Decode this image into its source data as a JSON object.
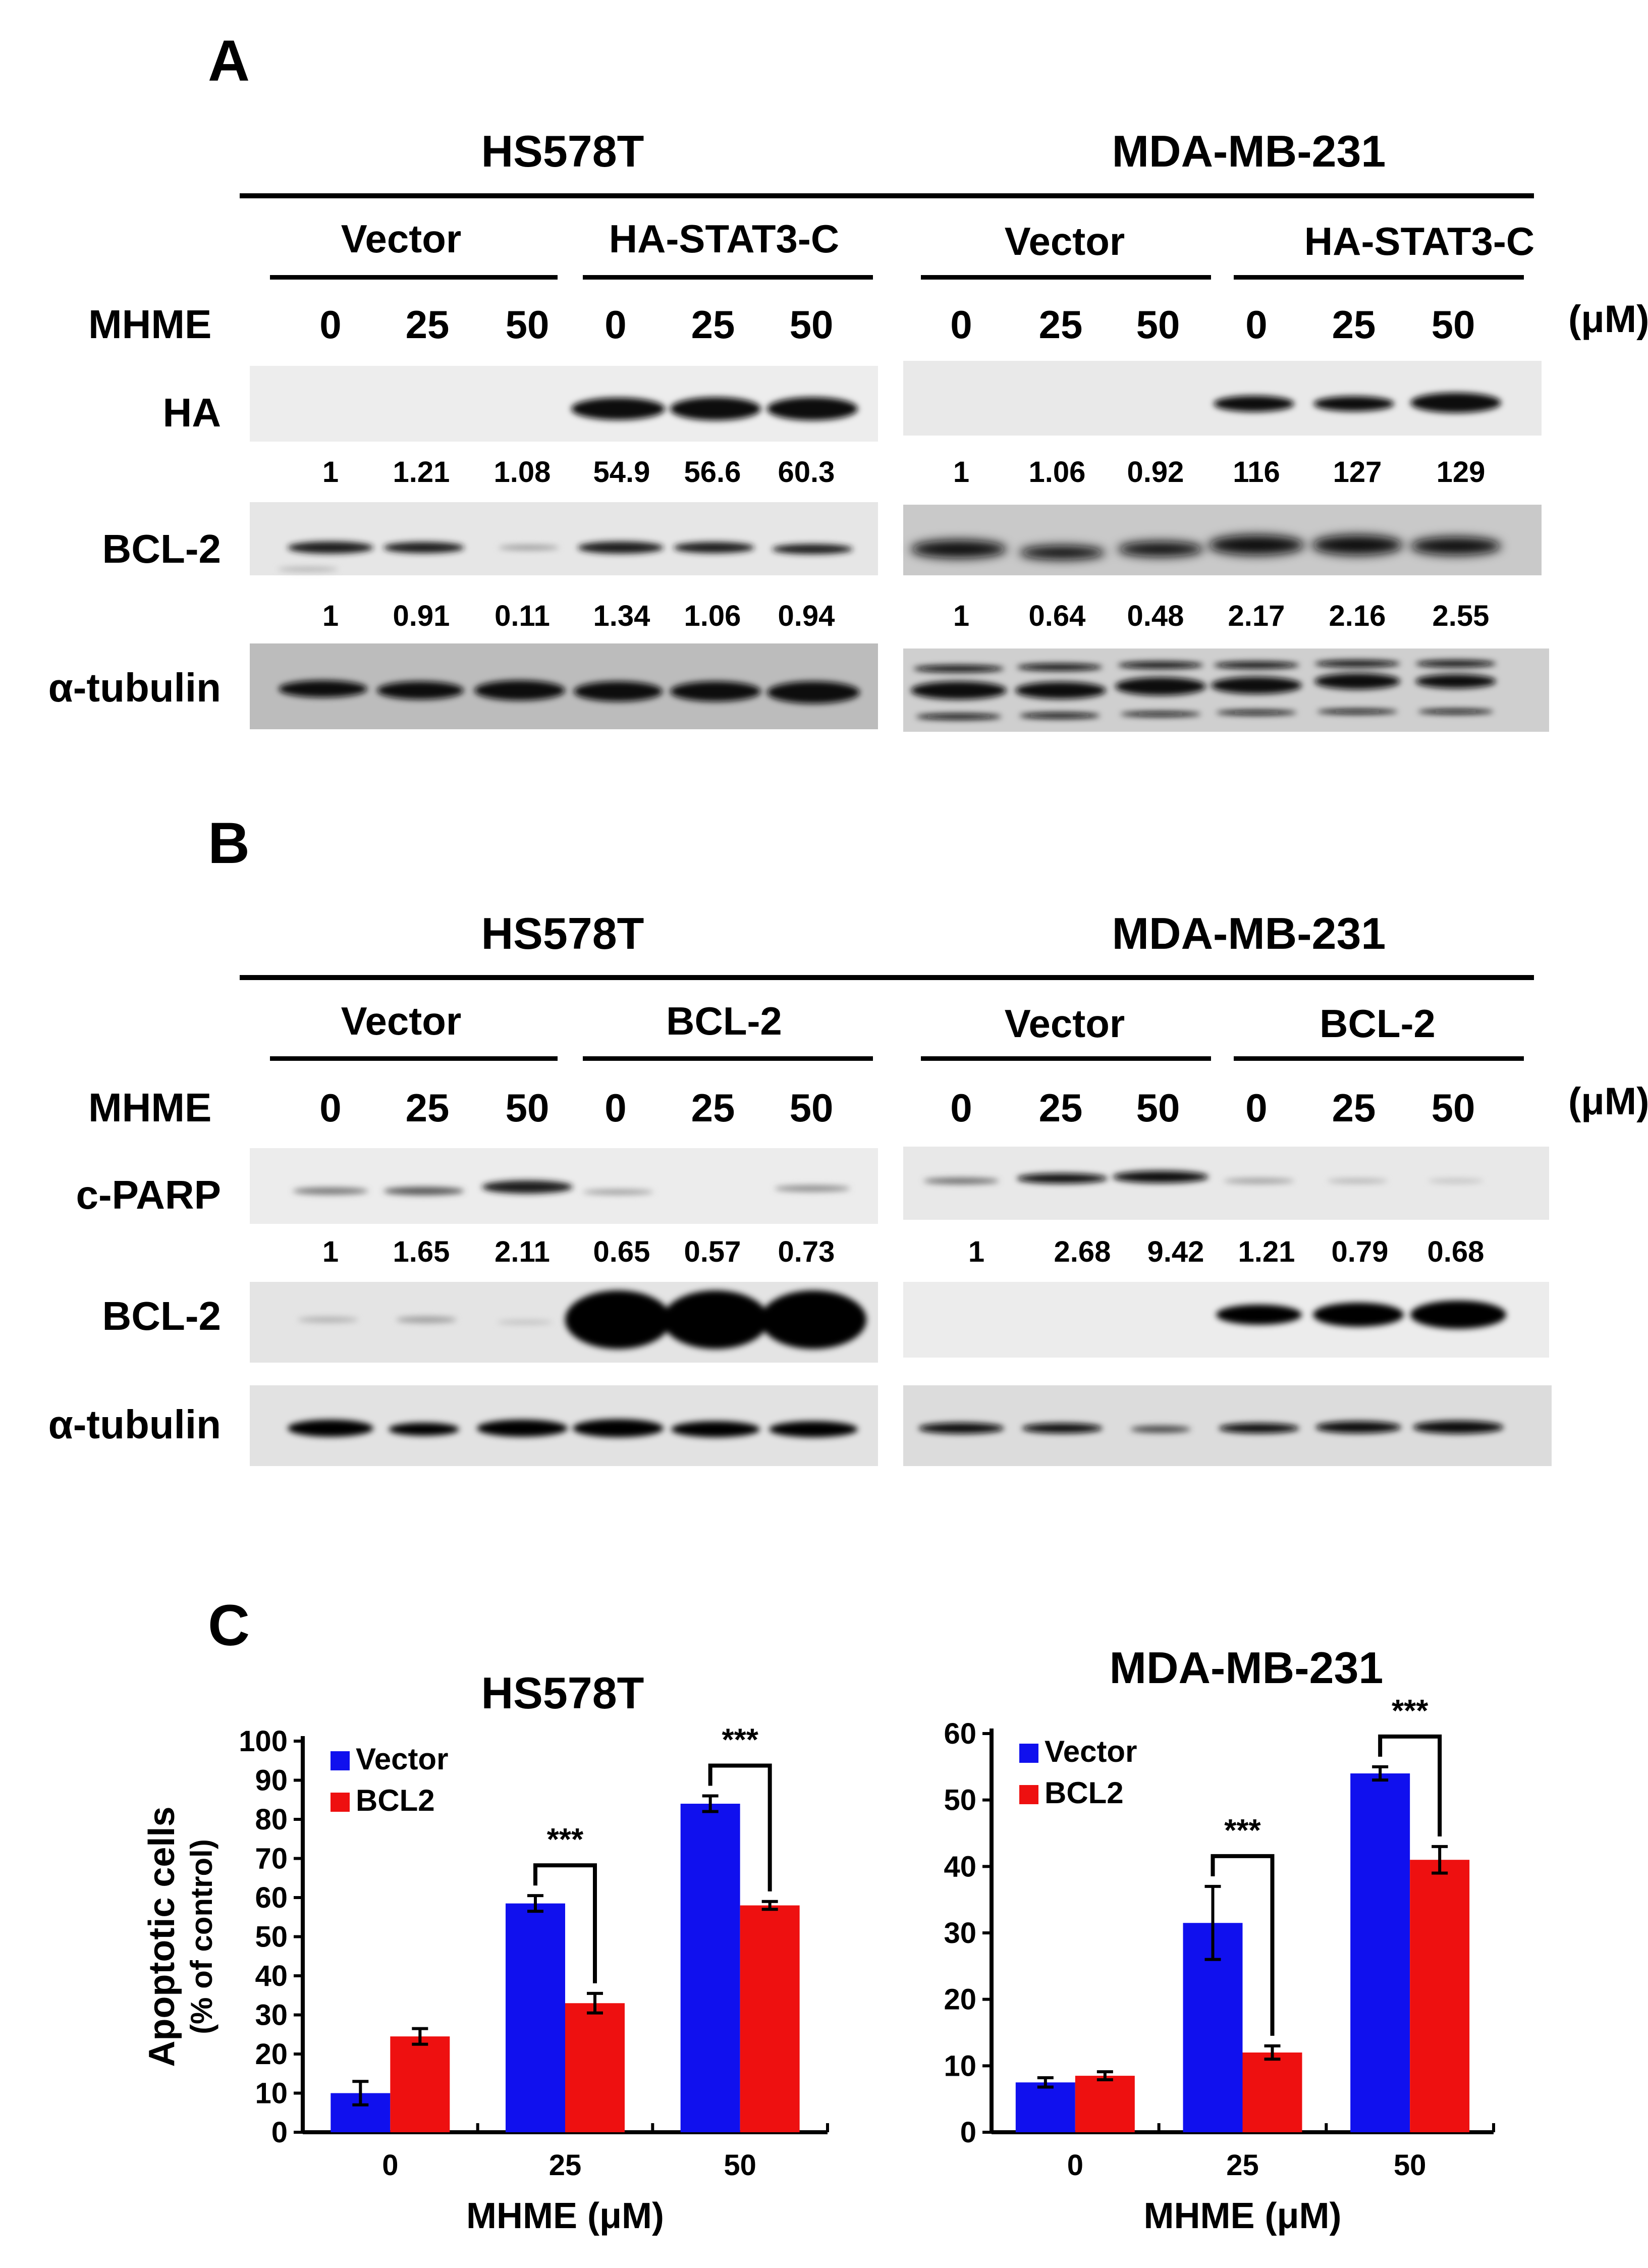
{
  "panels": {
    "A": {
      "letter": "A",
      "cells": [
        "HS578T",
        "MDA-MB-231"
      ],
      "groups": [
        [
          "Vector",
          "HA-STAT3-C"
        ],
        [
          "Vector",
          "HA-STAT3-C"
        ]
      ],
      "treatment_label": "MHME",
      "doses": [
        "0",
        "25",
        "50",
        "0",
        "25",
        "50"
      ],
      "unit": "(μM)",
      "rows": [
        {
          "label": "HA",
          "quant": [
            [
              "1",
              "1.21",
              "1.08",
              "54.9",
              "56.6",
              "60.3"
            ],
            [
              "1",
              "1.06",
              "0.92",
              "116",
              "127",
              "129"
            ]
          ]
        },
        {
          "label": "BCL-2",
          "quant": [
            [
              "1",
              "0.91",
              "0.11",
              "1.34",
              "1.06",
              "0.94"
            ],
            [
              "1",
              "0.64",
              "0.48",
              "2.17",
              "2.16",
              "2.55"
            ]
          ]
        },
        {
          "label": "α-tubulin"
        }
      ]
    },
    "B": {
      "letter": "B",
      "cells": [
        "HS578T",
        "MDA-MB-231"
      ],
      "groups": [
        [
          "Vector",
          "BCL-2"
        ],
        [
          "Vector",
          "BCL-2"
        ]
      ],
      "treatment_label": "MHME",
      "doses": [
        "0",
        "25",
        "50",
        "0",
        "25",
        "50"
      ],
      "unit": "(μM)",
      "rows": [
        {
          "label": "c-PARP",
          "quant": [
            [
              "1",
              "1.65",
              "2.11",
              "0.65",
              "0.57",
              "0.73"
            ],
            [
              "1",
              "2.68",
              "9.42",
              "1.21",
              "0.79",
              "0.68"
            ]
          ]
        },
        {
          "label": "BCL-2"
        },
        {
          "label": "α-tubulin"
        }
      ]
    },
    "C": {
      "letter": "C"
    }
  },
  "chart_data": [
    {
      "type": "bar",
      "title": "HS578T",
      "xlabel": "MHME (μM)",
      "ylabel": "Apoptotic cells",
      "ylabel_sub": "(% of control)",
      "categories": [
        "0",
        "25",
        "50"
      ],
      "ylim": [
        0,
        100
      ],
      "yticks": [
        0,
        10,
        20,
        30,
        40,
        50,
        60,
        70,
        80,
        90,
        100
      ],
      "legend_position": "top-left",
      "series": [
        {
          "name": "Vector",
          "color": "#1010ee",
          "values": [
            10,
            58.5,
            84
          ],
          "errors": [
            3,
            2,
            2
          ]
        },
        {
          "name": "BCL2",
          "color": "#ee1010",
          "values": [
            24.5,
            33,
            58
          ],
          "errors": [
            2,
            2.5,
            1
          ]
        }
      ],
      "significance": [
        "",
        "***",
        "***"
      ]
    },
    {
      "type": "bar",
      "title": "MDA-MB-231",
      "xlabel": "MHME (μM)",
      "ylabel": "",
      "categories": [
        "0",
        "25",
        "50"
      ],
      "ylim": [
        0,
        60
      ],
      "yticks": [
        0,
        10,
        20,
        30,
        40,
        50,
        60
      ],
      "legend_position": "top-left",
      "series": [
        {
          "name": "Vector",
          "color": "#1010ee",
          "values": [
            7.5,
            31.5,
            54
          ],
          "errors": [
            0.7,
            5.5,
            1
          ]
        },
        {
          "name": "BCL2",
          "color": "#ee1010",
          "values": [
            8.5,
            12,
            41
          ],
          "errors": [
            0.6,
            1,
            2
          ]
        }
      ],
      "significance": [
        "",
        "***",
        "***"
      ]
    }
  ]
}
